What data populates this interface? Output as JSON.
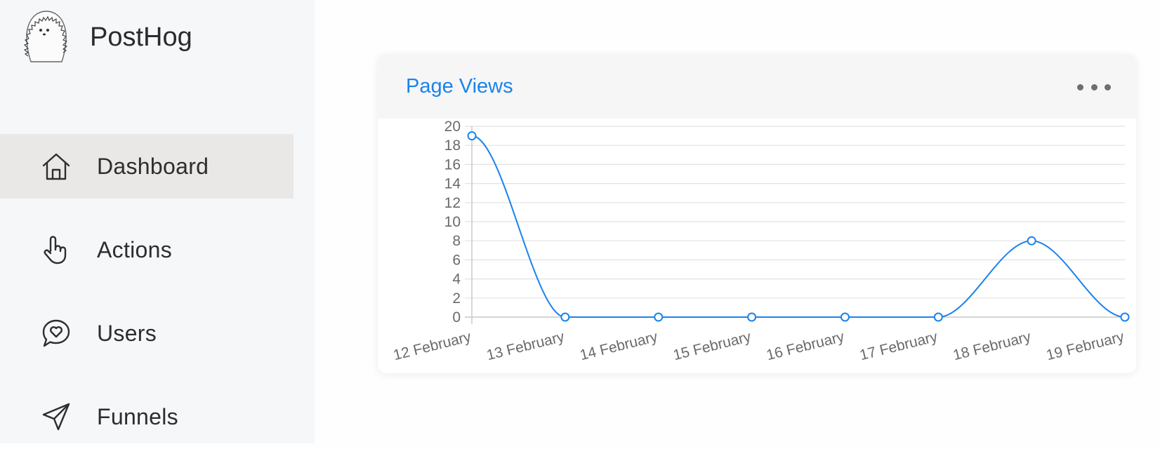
{
  "brand": {
    "name": "PostHog",
    "logo_icon": "hedgehog-logo-icon"
  },
  "sidebar": {
    "items": [
      {
        "label": "Dashboard",
        "icon": "home-icon",
        "active": true
      },
      {
        "label": "Actions",
        "icon": "pointer-hand-icon",
        "active": false
      },
      {
        "label": "Users",
        "icon": "chat-heart-icon",
        "active": false
      },
      {
        "label": "Funnels",
        "icon": "paper-plane-icon",
        "active": false
      }
    ]
  },
  "card": {
    "title": "Page Views",
    "more_icon": "more-dots-icon"
  },
  "colors": {
    "accent": "#1a83ec",
    "sidebar_bg": "#f6f7f9",
    "active_item_bg": "#e9e8e7"
  },
  "chart_data": {
    "type": "line",
    "title": "",
    "xlabel": "",
    "ylabel": "",
    "categories": [
      "12 February",
      "13 February",
      "14 February",
      "15 February",
      "16 February",
      "17 February",
      "18 February",
      "19 February"
    ],
    "series": [
      {
        "values": [
          19,
          0,
          0,
          0,
          0,
          0,
          8,
          0
        ],
        "color": "#1a83ec"
      }
    ],
    "ylim": [
      0,
      20
    ],
    "yticks": [
      0,
      2,
      4,
      6,
      8,
      10,
      12,
      14,
      16,
      18,
      20
    ],
    "grid": true,
    "legend": "none",
    "curve": "smooth"
  }
}
